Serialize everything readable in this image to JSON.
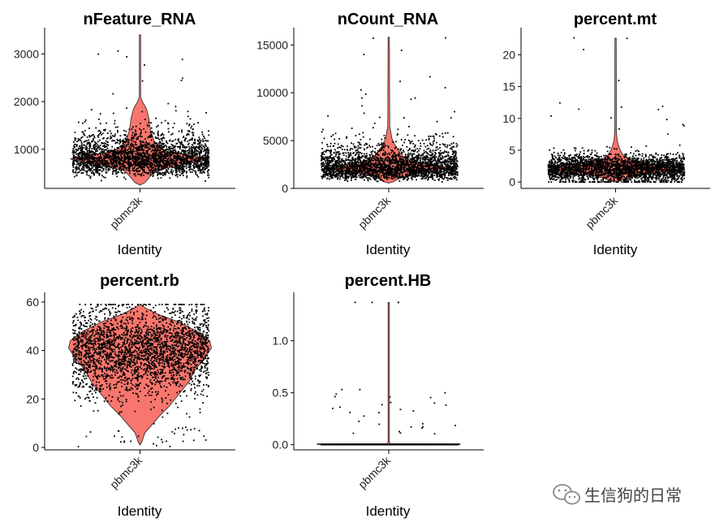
{
  "colors": {
    "violin": "#f8766d",
    "violin_stroke": "#222222",
    "points": "#000000",
    "axis": "#000000"
  },
  "watermark": {
    "text": "生信狗的日常",
    "icon": "wechat-icon"
  },
  "chart_data": [
    {
      "type": "violin",
      "title": "nFeature_RNA",
      "xlabel": "Identity",
      "categories": [
        "pbmc3k"
      ],
      "ylim": [
        180,
        3450
      ],
      "yticks": [
        1000,
        2000,
        3000
      ],
      "ytick_labels": [
        "1000",
        "2000",
        "3000"
      ],
      "summary": {
        "median": 800,
        "max": 3400,
        "min": 250
      },
      "n_points": 2700
    },
    {
      "type": "violin",
      "title": "nCount_RNA",
      "xlabel": "Identity",
      "categories": [
        "pbmc3k"
      ],
      "ylim": [
        0,
        16300
      ],
      "yticks": [
        0,
        5000,
        10000,
        15000
      ],
      "ytick_labels": [
        "0",
        "5000",
        "10000",
        "15000"
      ],
      "summary": {
        "median": 2200,
        "max": 15800,
        "min": 550
      },
      "n_points": 2700
    },
    {
      "type": "violin",
      "title": "percent.mt",
      "xlabel": "Identity",
      "categories": [
        "pbmc3k"
      ],
      "ylim": [
        -1,
        23.5
      ],
      "yticks": [
        0,
        5,
        10,
        15,
        20
      ],
      "ytick_labels": [
        "0",
        "5",
        "10",
        "15",
        "20"
      ],
      "summary": {
        "median": 2.0,
        "max": 22.6,
        "min": 0
      },
      "n_points": 2700
    },
    {
      "type": "violin",
      "title": "percent.rb",
      "xlabel": "Identity",
      "categories": [
        "pbmc3k"
      ],
      "ylim": [
        -1,
        62
      ],
      "yticks": [
        0,
        20,
        40,
        60
      ],
      "ytick_labels": [
        "0",
        "20",
        "40",
        "60"
      ],
      "summary": {
        "median": 40,
        "max": 59,
        "min": 1
      },
      "n_points": 2700
    },
    {
      "type": "violin",
      "title": "percent.HB",
      "xlabel": "Identity",
      "categories": [
        "pbmc3k"
      ],
      "ylim": [
        -0.05,
        1.42
      ],
      "yticks": [
        0.0,
        0.5,
        1.0
      ],
      "ytick_labels": [
        "0.0",
        "0.5",
        "1.0"
      ],
      "summary": {
        "median": 0,
        "max": 1.37,
        "min": 0
      },
      "n_points": 2700
    }
  ]
}
